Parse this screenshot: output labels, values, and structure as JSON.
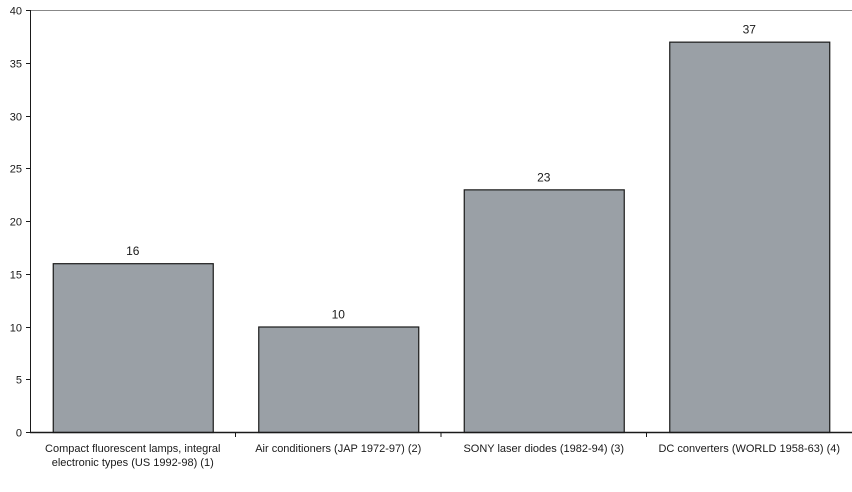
{
  "chart_data": {
    "type": "bar",
    "categories": [
      "Compact fluorescent lamps, integral electronic types (US 1992-98) (1)",
      "Air conditioners (JAP 1972-97) (2)",
      "SONY laser diodes (1982-94) (3)",
      "DC converters (WORLD 1958-63) (4)"
    ],
    "values": [
      16,
      10,
      23,
      37
    ],
    "data_labels": [
      "16",
      "10",
      "23",
      "37"
    ],
    "title": "",
    "xlabel": "",
    "ylabel": "",
    "ylim": [
      0,
      40
    ],
    "yticks": [
      0,
      5,
      10,
      15,
      20,
      25,
      30,
      35,
      40
    ],
    "ytick_labels": [
      "0",
      "5",
      "10",
      "15",
      "20",
      "25",
      "30",
      "35",
      "40"
    ],
    "grid": false,
    "legend": "none",
    "bar_color": "#9aa0a6",
    "bar_edge_color": "#1a1a1a"
  }
}
